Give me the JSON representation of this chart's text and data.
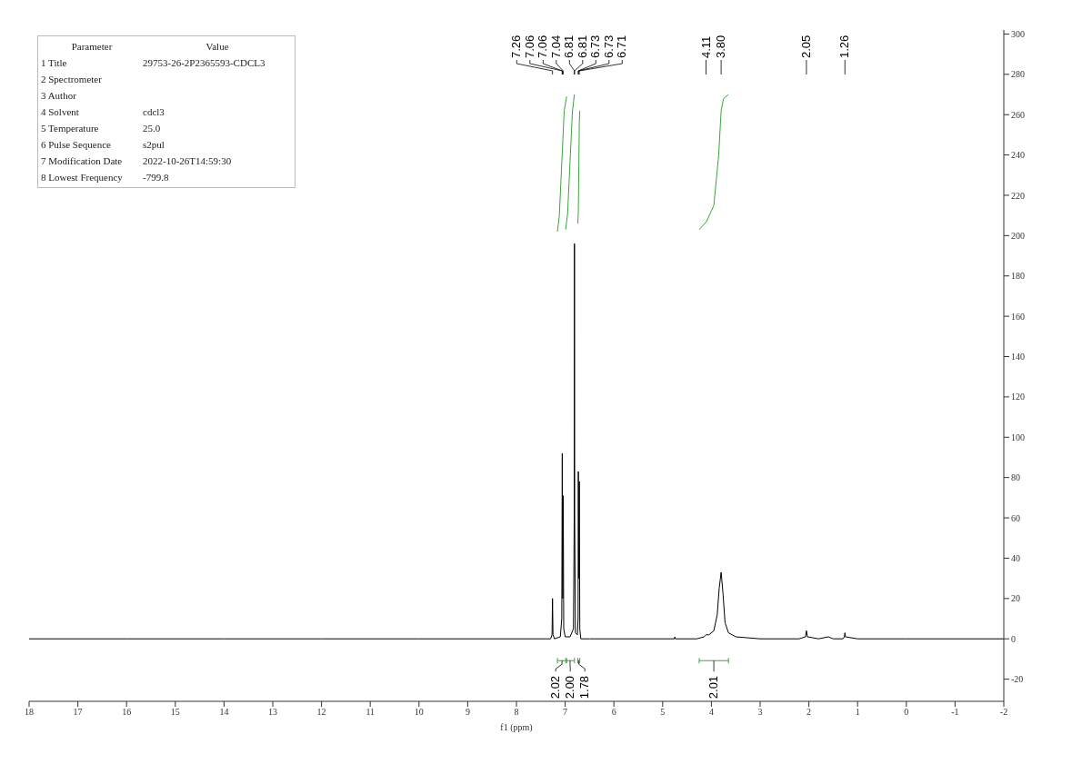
{
  "chart_data": [
    {
      "type": "line",
      "xlabel": "f1 (ppm)",
      "xlim": [
        18,
        -2
      ],
      "xticks": [
        18,
        17,
        16,
        15,
        14,
        13,
        12,
        11,
        10,
        9,
        8,
        7,
        6,
        5,
        4,
        3,
        2,
        1,
        0,
        -1,
        -2
      ],
      "ylim": [
        -31,
        302
      ],
      "yticks": [
        -20,
        0,
        20,
        40,
        60,
        80,
        100,
        120,
        140,
        160,
        180,
        200,
        220,
        240,
        260,
        280,
        300
      ],
      "marker": "none",
      "line_style": "solid",
      "series": [
        {
          "color": "#000000",
          "x": [
            18,
            16,
            14,
            12,
            10,
            8,
            7.4,
            7.3,
            7.27,
            7.26,
            7.25,
            7.22,
            7.1,
            7.07,
            7.06,
            7.055,
            7.05,
            7.04,
            7.03,
            7.0,
            6.9,
            6.83,
            6.815,
            6.81,
            6.805,
            6.79,
            6.75,
            6.735,
            6.73,
            6.72,
            6.71,
            6.7,
            6.68,
            6.5,
            5.5,
            4.76,
            4.75,
            4.74,
            4.3,
            4.15,
            4.11,
            4.05,
            3.95,
            3.88,
            3.84,
            3.8,
            3.76,
            3.72,
            3.65,
            3.5,
            3.0,
            2.2,
            2.07,
            2.05,
            2.03,
            1.8,
            1.6,
            1.5,
            1.3,
            1.27,
            1.26,
            1.25,
            1.0,
            0,
            -2
          ],
          "values": [
            0,
            0,
            0,
            0,
            0,
            0,
            0,
            0,
            2,
            20,
            2,
            0,
            1,
            10,
            92,
            40,
            20,
            71,
            5,
            1,
            1,
            5,
            60,
            196,
            60,
            3,
            2,
            10,
            83,
            30,
            78,
            5,
            0,
            0,
            0,
            0,
            1,
            0,
            0,
            1,
            2,
            2,
            4,
            12,
            25,
            33,
            22,
            8,
            3,
            1,
            0,
            0,
            1,
            4,
            1,
            0,
            1,
            0,
            0,
            1,
            3,
            1,
            0,
            0,
            0
          ]
        },
        {
          "color": "#3aa63a",
          "x": [
            7.16,
            7.12,
            7.07,
            7.02,
            6.97
          ],
          "values": [
            202,
            210,
            236,
            262,
            269
          ]
        },
        {
          "color": "#3aa63a",
          "x": [
            6.99,
            6.95,
            6.9,
            6.85,
            6.81
          ],
          "values": [
            203,
            211,
            237,
            262,
            270
          ]
        },
        {
          "color": "#3aa63a",
          "x": [
            6.74,
            6.73,
            6.72,
            6.71,
            6.7
          ],
          "values": [
            206,
            212,
            234,
            256,
            262
          ]
        },
        {
          "color": "#3aa63a",
          "x": [
            4.25,
            4.1,
            3.95,
            3.85,
            3.8,
            3.75,
            3.65
          ],
          "values": [
            203,
            207,
            215,
            240,
            262,
            268,
            270
          ]
        }
      ],
      "annotations": [
        {
          "text": "7.26",
          "x": 7.26
        },
        {
          "text": "7.06",
          "x": 7.06
        },
        {
          "text": "7.06",
          "x": 7.06
        },
        {
          "text": "7.04",
          "x": 7.04
        },
        {
          "text": "6.81",
          "x": 6.81
        },
        {
          "text": "6.81",
          "x": 6.81
        },
        {
          "text": "6.73",
          "x": 6.73
        },
        {
          "text": "6.73",
          "x": 6.73
        },
        {
          "text": "6.71",
          "x": 6.71
        },
        {
          "text": "4.11",
          "x": 4.11
        },
        {
          "text": "3.80",
          "x": 3.8
        },
        {
          "text": "2.05",
          "x": 2.05
        },
        {
          "text": "1.26",
          "x": 1.26
        },
        "2.02",
        "2.00",
        "1.78",
        "2.01"
      ]
    },
    {
      "type": "other",
      "categories": [
        "Parameter",
        "1 Title",
        "2 Spectrometer",
        "3 Author",
        "4 Solvent",
        "5 Temperature",
        "6 Pulse Sequence",
        "7 Modification Date",
        "8 Lowest Frequency"
      ],
      "annotations": [
        "Value",
        "29753-26-2P2365593-CDCL3",
        null,
        null,
        "cdcl3",
        "25.0",
        "s2pul",
        "2022-10-26T14:59:30",
        "-799.8"
      ]
    }
  ]
}
